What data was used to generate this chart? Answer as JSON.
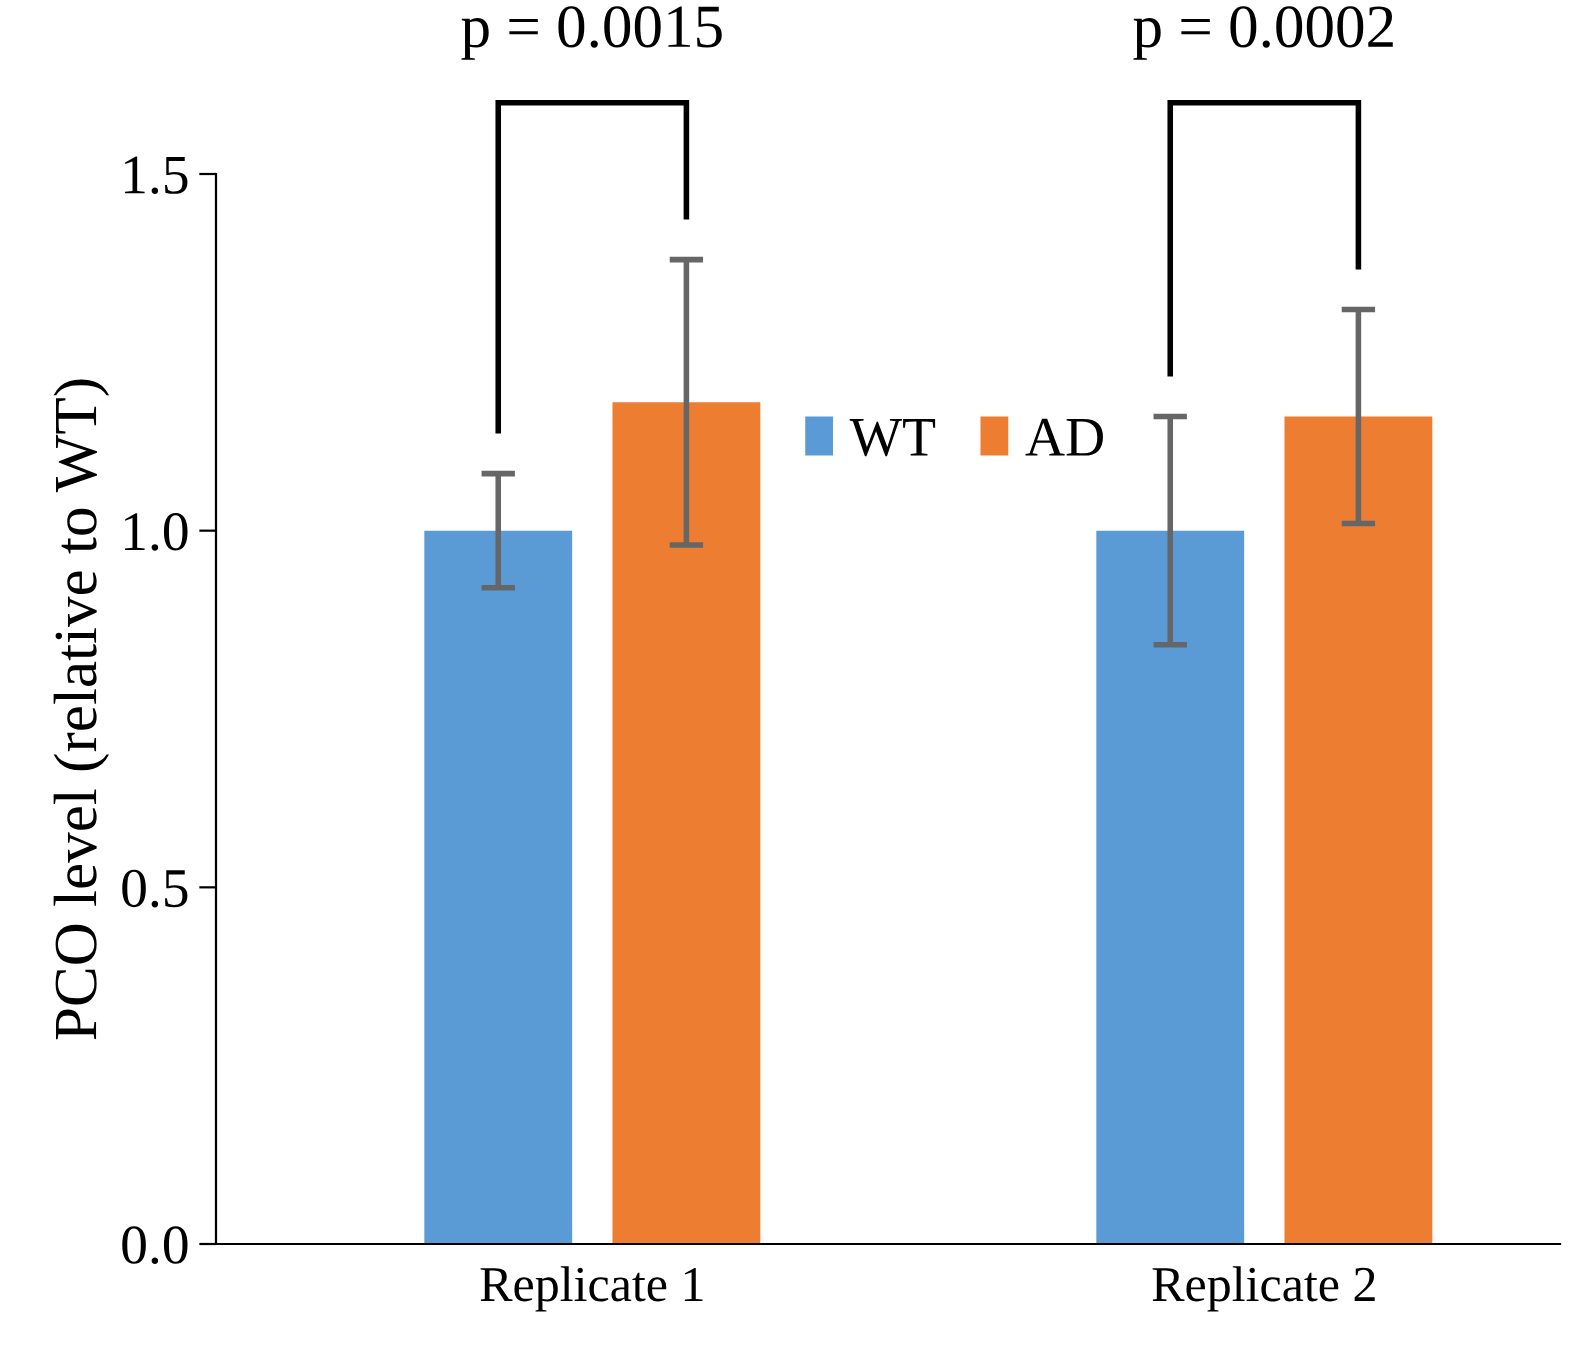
{
  "chart_data": {
    "type": "bar",
    "ylabel": "PCO level (relative to WT)",
    "categories": [
      "Replicate 1",
      "Replicate 2"
    ],
    "series": [
      {
        "name": "WT",
        "color": "#5b9bd5",
        "values": [
          1.0,
          1.0
        ],
        "errors": [
          0.08,
          0.16
        ]
      },
      {
        "name": "AD",
        "color": "#ed7d31",
        "values": [
          1.18,
          1.16
        ],
        "errors": [
          0.2,
          0.15
        ]
      }
    ],
    "ylim": [
      0,
      1.5
    ],
    "yticks": [
      {
        "value": 0,
        "label": "0.0"
      },
      {
        "value": 0.5,
        "label": "0.5"
      },
      {
        "value": 1.0,
        "label": "1.0"
      },
      {
        "value": 1.5,
        "label": "1.5"
      }
    ],
    "annotations": [
      "p = 0.0015",
      "p = 0.0002"
    ],
    "legend": "top",
    "grid": false
  }
}
